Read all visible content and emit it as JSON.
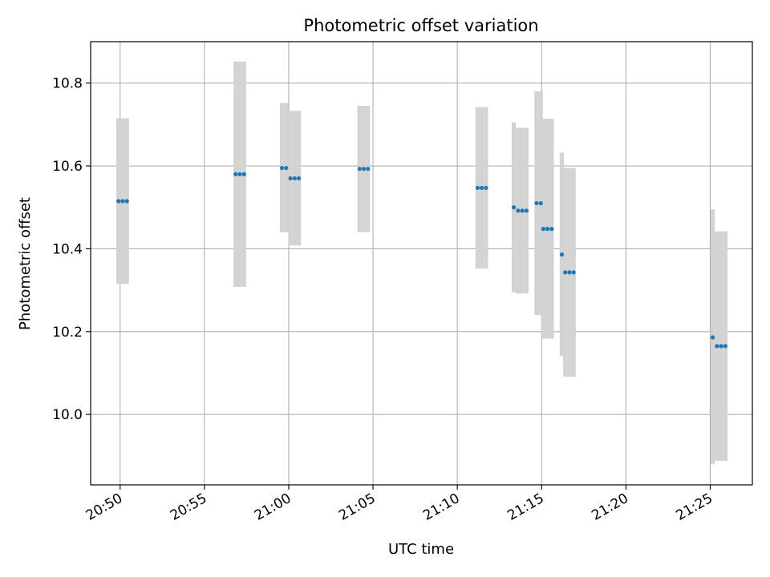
{
  "chart_data": {
    "type": "scatter",
    "title": "Photometric offset variation",
    "xlabel": "UTC time",
    "ylabel": "Photometric offset",
    "xlim": [
      "20:48:15",
      "21:27:30"
    ],
    "ylim": [
      9.83,
      10.9
    ],
    "grid": true,
    "x_tick_labels": [
      "20:50",
      "20:55",
      "21:00",
      "21:05",
      "21:10",
      "21:15",
      "21:20",
      "21:25"
    ],
    "y_tick_values": [
      10.0,
      10.2,
      10.4,
      10.6,
      10.8
    ],
    "y_tick_labels": [
      "10.0",
      "10.2",
      "10.4",
      "10.6",
      "10.8"
    ],
    "colors": {
      "point": "#1f77b4",
      "error_band": "#d3d3d3",
      "grid": "#b0b0b0"
    },
    "series": [
      {
        "points": [
          {
            "t": "20:49:54",
            "y": 10.515,
            "lo": 10.315,
            "hi": 10.715
          },
          {
            "t": "20:50:09",
            "y": 10.515,
            "lo": 10.315,
            "hi": 10.715
          },
          {
            "t": "20:50:24",
            "y": 10.515,
            "lo": 10.315,
            "hi": 10.715
          },
          {
            "t": "20:56:51",
            "y": 10.58,
            "lo": 10.308,
            "hi": 10.852
          },
          {
            "t": "20:57:06",
            "y": 10.58,
            "lo": 10.308,
            "hi": 10.852
          },
          {
            "t": "20:57:21",
            "y": 10.58,
            "lo": 10.308,
            "hi": 10.852
          },
          {
            "t": "20:59:36",
            "y": 10.595,
            "lo": 10.44,
            "hi": 10.752
          },
          {
            "t": "20:59:51",
            "y": 10.595,
            "lo": 10.44,
            "hi": 10.752
          },
          {
            "t": "21:00:06",
            "y": 10.57,
            "lo": 10.408,
            "hi": 10.733
          },
          {
            "t": "21:00:21",
            "y": 10.57,
            "lo": 10.408,
            "hi": 10.733
          },
          {
            "t": "21:00:36",
            "y": 10.57,
            "lo": 10.408,
            "hi": 10.733
          },
          {
            "t": "21:04:12",
            "y": 10.593,
            "lo": 10.44,
            "hi": 10.745
          },
          {
            "t": "21:04:27",
            "y": 10.593,
            "lo": 10.44,
            "hi": 10.745
          },
          {
            "t": "21:04:42",
            "y": 10.593,
            "lo": 10.44,
            "hi": 10.745
          },
          {
            "t": "21:11:12",
            "y": 10.547,
            "lo": 10.352,
            "hi": 10.742
          },
          {
            "t": "21:11:27",
            "y": 10.547,
            "lo": 10.352,
            "hi": 10.742
          },
          {
            "t": "21:11:42",
            "y": 10.547,
            "lo": 10.352,
            "hi": 10.742
          },
          {
            "t": "21:13:21",
            "y": 10.5,
            "lo": 10.295,
            "hi": 10.705
          },
          {
            "t": "21:13:36",
            "y": 10.492,
            "lo": 10.292,
            "hi": 10.692
          },
          {
            "t": "21:13:51",
            "y": 10.492,
            "lo": 10.292,
            "hi": 10.692
          },
          {
            "t": "21:14:06",
            "y": 10.492,
            "lo": 10.292,
            "hi": 10.692
          },
          {
            "t": "21:14:42",
            "y": 10.51,
            "lo": 10.24,
            "hi": 10.78
          },
          {
            "t": "21:14:57",
            "y": 10.51,
            "lo": 10.24,
            "hi": 10.78
          },
          {
            "t": "21:15:06",
            "y": 10.448,
            "lo": 10.183,
            "hi": 10.714
          },
          {
            "t": "21:15:21",
            "y": 10.448,
            "lo": 10.183,
            "hi": 10.714
          },
          {
            "t": "21:15:36",
            "y": 10.448,
            "lo": 10.183,
            "hi": 10.714
          },
          {
            "t": "21:16:12",
            "y": 10.386,
            "lo": 10.141,
            "hi": 10.632
          },
          {
            "t": "21:16:24",
            "y": 10.343,
            "lo": 10.091,
            "hi": 10.595
          },
          {
            "t": "21:16:39",
            "y": 10.343,
            "lo": 10.091,
            "hi": 10.595
          },
          {
            "t": "21:16:54",
            "y": 10.343,
            "lo": 10.091,
            "hi": 10.595
          },
          {
            "t": "21:25:09",
            "y": 10.186,
            "lo": 9.88,
            "hi": 10.495
          },
          {
            "t": "21:25:24",
            "y": 10.165,
            "lo": 9.888,
            "hi": 10.442
          },
          {
            "t": "21:25:39",
            "y": 10.165,
            "lo": 9.888,
            "hi": 10.442
          },
          {
            "t": "21:25:54",
            "y": 10.165,
            "lo": 9.888,
            "hi": 10.442
          }
        ]
      }
    ]
  }
}
